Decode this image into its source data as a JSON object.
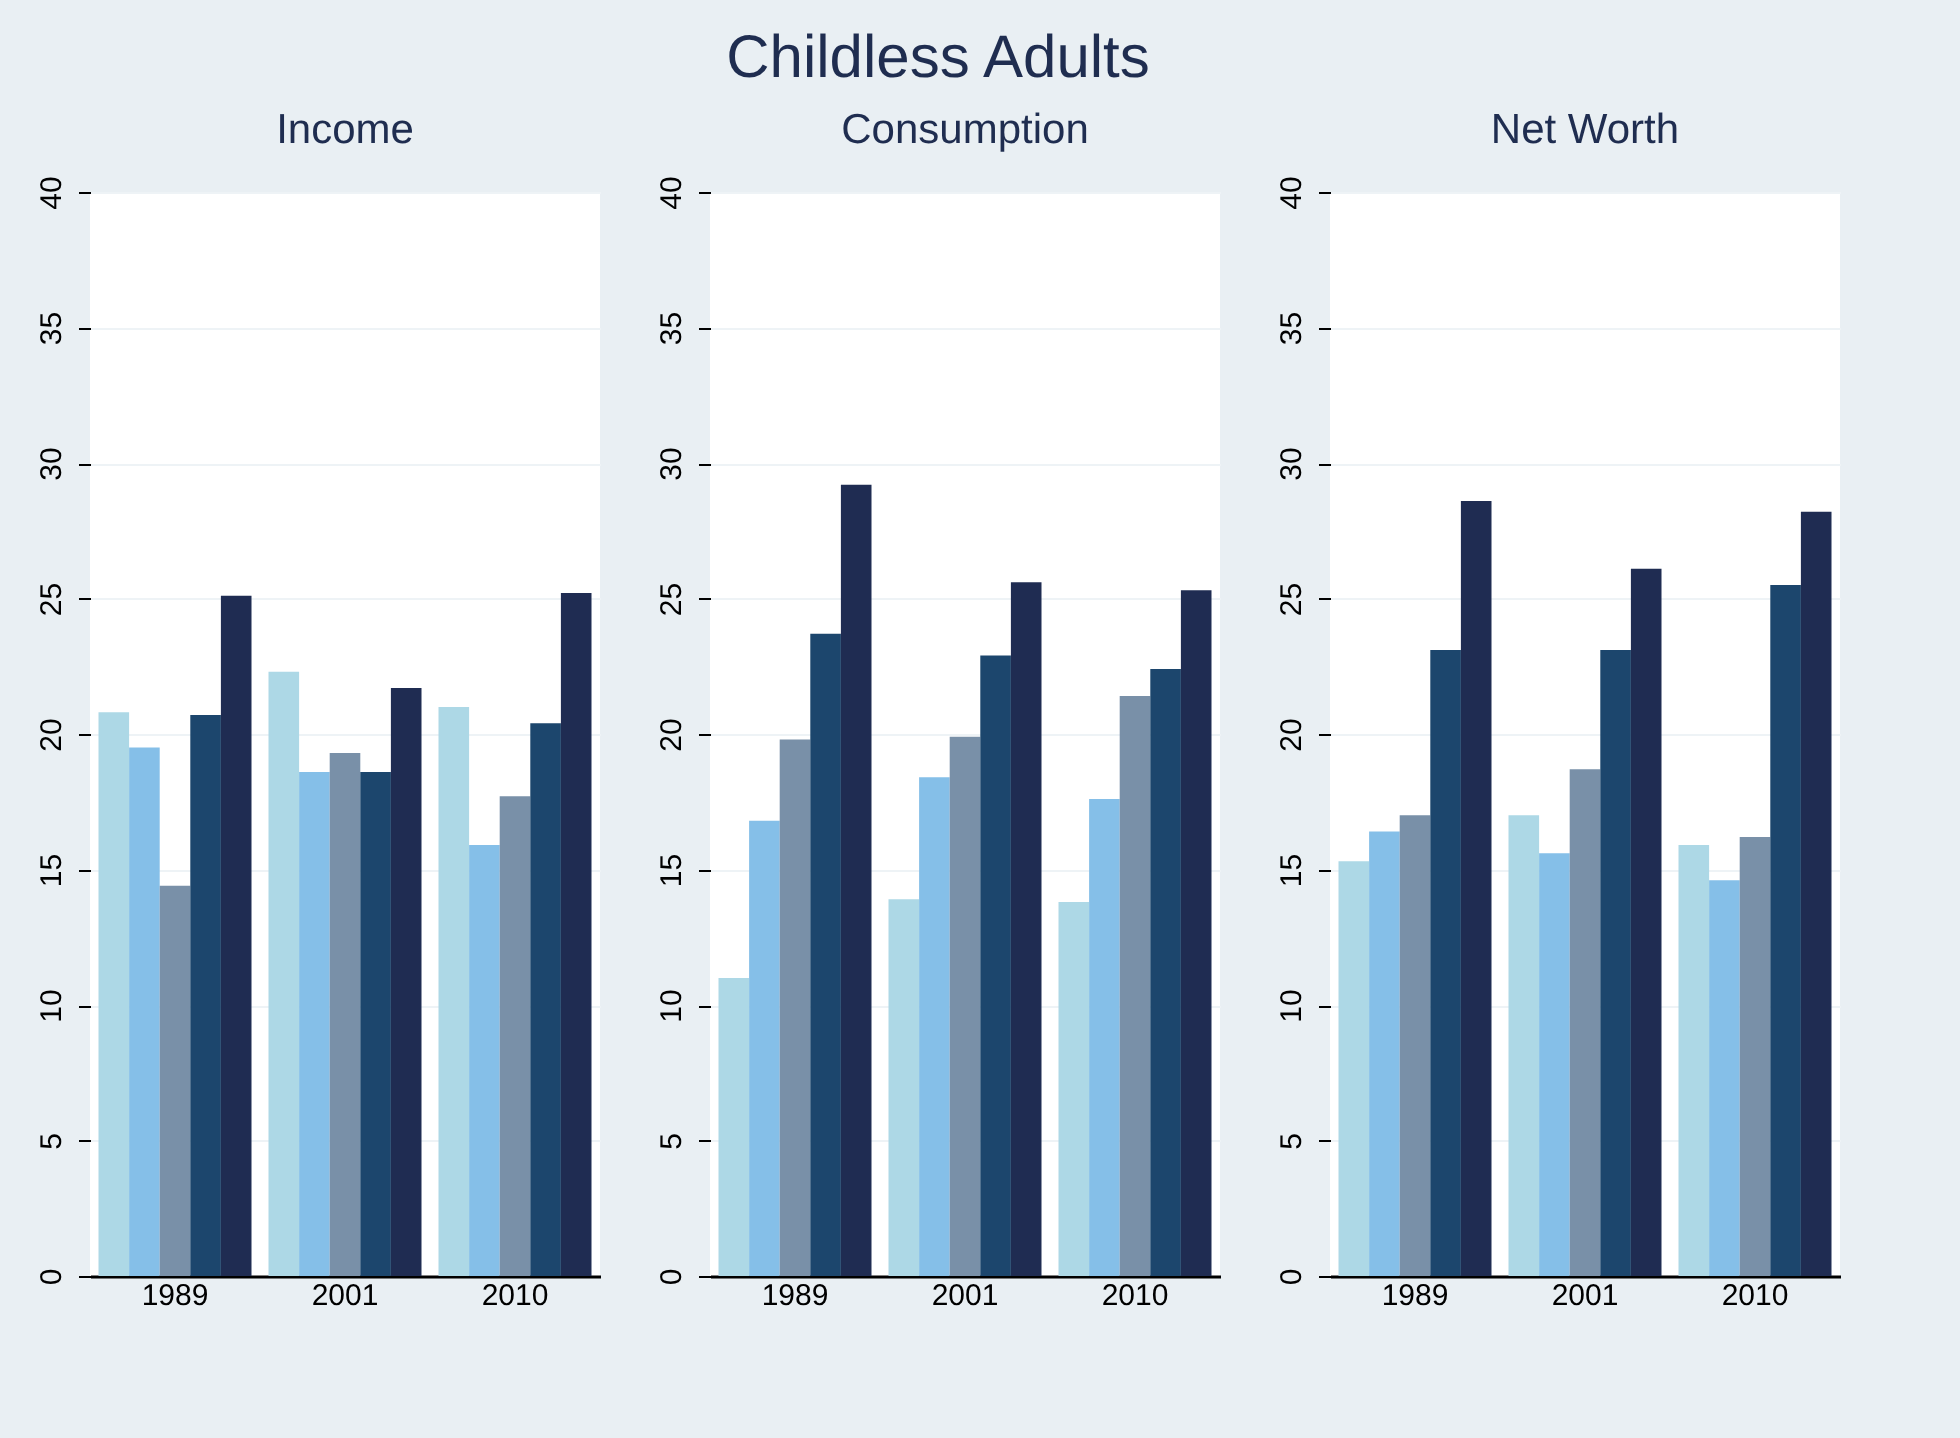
{
  "chart_data": [
    {
      "type": "bar",
      "subtitle": "Income",
      "categories": [
        "1989",
        "2001",
        "2010"
      ],
      "series": [
        {
          "color": "#add8e6",
          "values": [
            20.8,
            22.3,
            21.0
          ]
        },
        {
          "color": "#85bfe8",
          "values": [
            19.5,
            18.6,
            15.9
          ]
        },
        {
          "color": "#7990a8",
          "values": [
            14.4,
            19.3,
            17.7
          ]
        },
        {
          "color": "#1c466d",
          "values": [
            20.7,
            18.6,
            20.4
          ]
        },
        {
          "color": "#1f2c52",
          "values": [
            25.1,
            21.7,
            25.2
          ]
        }
      ],
      "ylim": [
        0,
        40
      ],
      "yticks": [
        0,
        5,
        10,
        15,
        20,
        25,
        30,
        35,
        40
      ],
      "grid": "y"
    },
    {
      "type": "bar",
      "title": "Childless Adults",
      "subtitle": "Consumption",
      "categories": [
        "1989",
        "2001",
        "2010"
      ],
      "series": [
        {
          "color": "#add8e6",
          "values": [
            11.0,
            13.9,
            13.8
          ]
        },
        {
          "color": "#85bfe8",
          "values": [
            16.8,
            18.4,
            17.6
          ]
        },
        {
          "color": "#7990a8",
          "values": [
            19.8,
            19.9,
            21.4
          ]
        },
        {
          "color": "#1c466d",
          "values": [
            23.7,
            22.9,
            22.4
          ]
        },
        {
          "color": "#1f2c52",
          "values": [
            29.2,
            25.6,
            25.3
          ]
        }
      ],
      "ylim": [
        0,
        40
      ],
      "yticks": [
        0,
        5,
        10,
        15,
        20,
        25,
        30,
        35,
        40
      ],
      "grid": "y"
    },
    {
      "type": "bar",
      "subtitle": "Net Worth",
      "categories": [
        "1989",
        "2001",
        "2010"
      ],
      "series": [
        {
          "color": "#add8e6",
          "values": [
            15.3,
            17.0,
            15.9
          ]
        },
        {
          "color": "#85bfe8",
          "values": [
            16.4,
            15.6,
            14.6
          ]
        },
        {
          "color": "#7990a8",
          "values": [
            17.0,
            18.7,
            16.2
          ]
        },
        {
          "color": "#1c466d",
          "values": [
            23.1,
            23.1,
            25.5
          ]
        },
        {
          "color": "#1f2c52",
          "values": [
            28.6,
            26.1,
            28.2
          ]
        }
      ],
      "ylim": [
        0,
        40
      ],
      "yticks": [
        0,
        5,
        10,
        15,
        20,
        25,
        30,
        35,
        40
      ],
      "grid": "y"
    }
  ]
}
